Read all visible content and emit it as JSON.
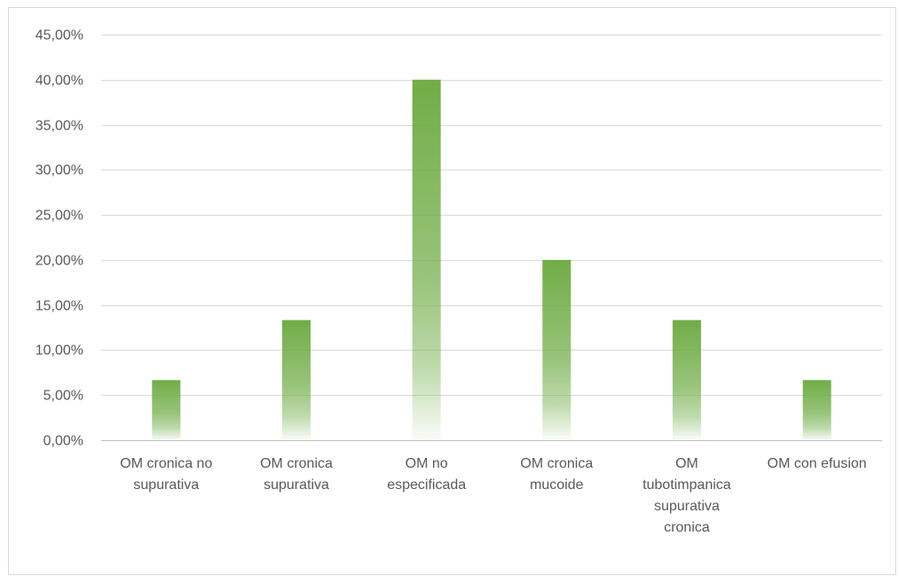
{
  "chart_data": {
    "type": "bar",
    "title": "",
    "xlabel": "",
    "ylabel": "",
    "ylim": [
      0,
      45
    ],
    "y_ticks": [
      0,
      5,
      10,
      15,
      20,
      25,
      30,
      35,
      40,
      45
    ],
    "y_tick_labels": [
      "0,00%",
      "5,00%",
      "10,00%",
      "15,00%",
      "20,00%",
      "25,00%",
      "30,00%",
      "35,00%",
      "40,00%",
      "45,00%"
    ],
    "grid": true,
    "legend": "none",
    "bar_color": "#70ad47",
    "categories": [
      [
        "OM cronica no",
        "supurativa"
      ],
      [
        "OM cronica",
        "supurativa"
      ],
      [
        "OM no",
        "especificada"
      ],
      [
        "OM cronica",
        "mucoide"
      ],
      [
        "OM",
        "tubotimpanica",
        "supurativa",
        "cronica"
      ],
      [
        "OM con efusion"
      ]
    ],
    "values": [
      6.67,
      13.33,
      40.0,
      20.0,
      13.33,
      6.67
    ]
  }
}
